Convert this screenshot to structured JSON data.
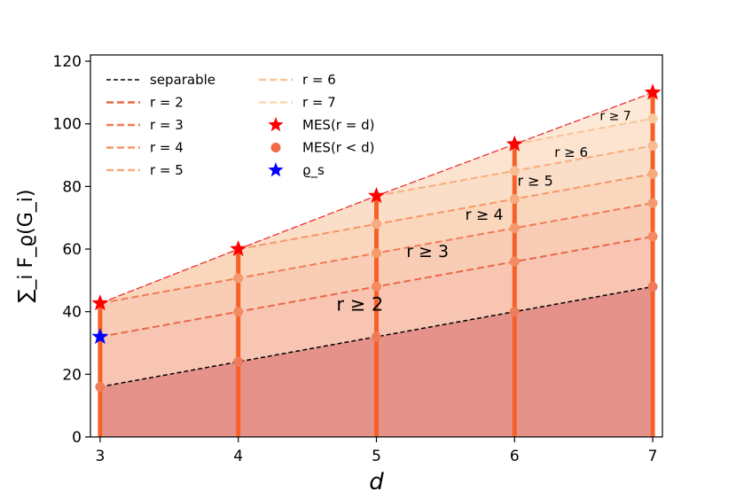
{
  "chart_data": {
    "type": "area",
    "xlabel": "d",
    "ylabel": "∑_i F_ϱ(G_i)",
    "xlim": [
      2.93,
      7.07
    ],
    "ylim": [
      0,
      122
    ],
    "xticks": [
      3,
      4,
      5,
      6,
      7
    ],
    "yticks": [
      0,
      20,
      40,
      60,
      80,
      100,
      120
    ],
    "grid": false,
    "legend_position": "top-left, two columns",
    "x": [
      3,
      4,
      5,
      6,
      7
    ],
    "series": [
      {
        "name": "separable",
        "style": "dashed",
        "color": "#000000",
        "points": [
          [
            3,
            16
          ],
          [
            4,
            24
          ],
          [
            5,
            32
          ],
          [
            6,
            40
          ],
          [
            7,
            48
          ]
        ]
      },
      {
        "name": "r = 2",
        "style": "dashed",
        "color": "#e8684a",
        "points": [
          [
            3,
            32
          ],
          [
            4,
            40
          ],
          [
            5,
            48
          ],
          [
            6,
            56
          ],
          [
            7,
            64
          ]
        ]
      },
      {
        "name": "r = 3",
        "style": "dashed",
        "color": "#f07c56",
        "points": [
          [
            4,
            50.7
          ],
          [
            5,
            58.7
          ],
          [
            6,
            66.7
          ],
          [
            7,
            74.7
          ]
        ]
      },
      {
        "name": "r = 4",
        "style": "dashed",
        "color": "#f59667",
        "points": [
          [
            5,
            68
          ],
          [
            6,
            76
          ],
          [
            7,
            84
          ]
        ]
      },
      {
        "name": "r = 5",
        "style": "dashed",
        "color": "#f8ad7d",
        "points": [
          [
            6,
            85
          ],
          [
            7,
            93
          ]
        ]
      },
      {
        "name": "r = 6",
        "style": "dashed",
        "color": "#fbc496",
        "points": [
          [
            7,
            101.7
          ]
        ]
      },
      {
        "name": "r = 7",
        "style": "dashed",
        "color": "#fcd8b2",
        "points": []
      }
    ],
    "mes_full": {
      "name": "MES(r = d)",
      "marker": "star",
      "color": "#ff0000",
      "points": [
        [
          3,
          42.7
        ],
        [
          4,
          60
        ],
        [
          5,
          77
        ],
        [
          6,
          93.5
        ],
        [
          7,
          110
        ]
      ]
    },
    "mes_partial": {
      "name": "MES(r < d)",
      "marker": "circle",
      "color": "#f06a48"
    },
    "rho_s": {
      "name": "ϱ_s",
      "marker": "star",
      "color": "#0000ff",
      "points": [
        [
          3,
          32
        ]
      ]
    },
    "legend": {
      "separable": "separable",
      "r2": "r = 2",
      "r3": "r = 3",
      "r4": "r = 4",
      "r5": "r = 5",
      "r6": "r = 6",
      "r7": "r = 7",
      "mes_full": "MES(r = d)",
      "mes_partial": "MES(r < d)",
      "rho_s": "ϱ_s"
    },
    "annotations": [
      {
        "text": "r ≥ 2",
        "x": 4.88,
        "y": 40.3,
        "size": 21
      },
      {
        "text": "r ≥ 3",
        "x": 5.37,
        "y": 57.5,
        "size": 19
      },
      {
        "text": "r ≥ 4",
        "x": 5.78,
        "y": 69.3,
        "size": 17
      },
      {
        "text": "r ≥ 5",
        "x": 6.15,
        "y": 80.3,
        "size": 16
      },
      {
        "text": "r ≥ 6",
        "x": 6.41,
        "y": 89.5,
        "size": 15
      },
      {
        "text": "r ≥ 7",
        "x": 6.73,
        "y": 101.2,
        "size": 14
      }
    ]
  }
}
